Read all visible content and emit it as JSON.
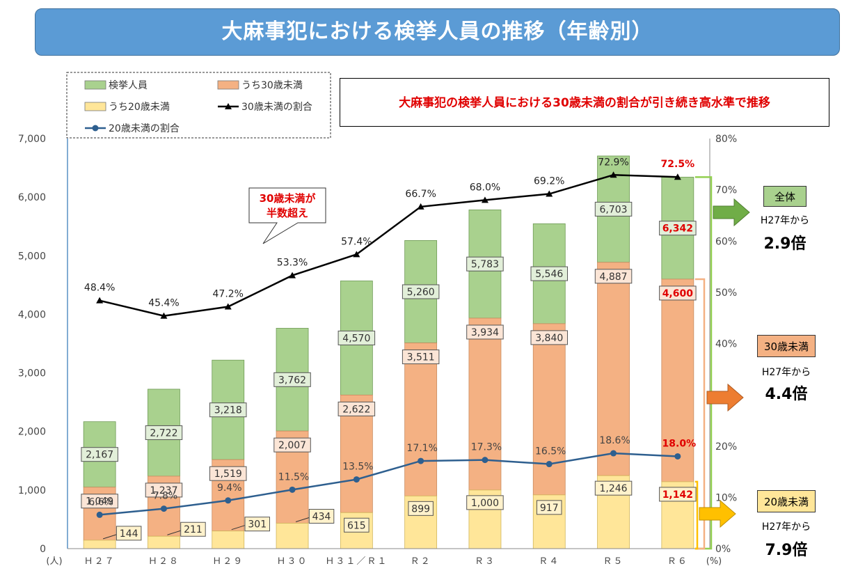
{
  "title": "大麻事犯における検挙人員の推移（年齢別）",
  "callout": "大麻事犯の検挙人員における30歳未満の割合が引き続き高水準で推移",
  "speech_bubble": [
    "30歳未満が",
    "半数超え"
  ],
  "side_notes": [
    {
      "label": "全体",
      "sub": "H27年から",
      "big": "2.9倍",
      "color": "#a9d18e"
    },
    {
      "label": "30歳未満",
      "sub": "H27年から",
      "big": "4.4倍",
      "color": "#f4b183"
    },
    {
      "label": "20歳未満",
      "sub": "H27年から",
      "big": "7.9倍",
      "color": "#ffe699"
    }
  ],
  "chart_data": {
    "type": "bar",
    "categories": [
      "Ｈ２７",
      "Ｈ２８",
      "Ｈ２９",
      "Ｈ３０",
      "Ｈ３１／Ｒ１",
      "Ｒ２",
      "Ｒ３",
      "Ｒ４",
      "Ｒ５",
      "Ｒ６"
    ],
    "y_unit_label": "(人)",
    "y2_unit_label": "(%)",
    "ylim": [
      0,
      7000
    ],
    "y_ticks": [
      "0",
      "1,000",
      "2,000",
      "3,000",
      "4,000",
      "5,000",
      "6,000",
      "7,000"
    ],
    "y2lim": [
      0,
      80
    ],
    "y2_ticks": [
      "0%",
      "10%",
      "20%",
      "30%",
      "40%",
      "50%",
      "60%",
      "70%",
      "80%"
    ],
    "legend_position": "top-left",
    "series": [
      {
        "name": "検挙人員",
        "kind": "bar",
        "color": "#a9d18e",
        "values": [
          2167,
          2722,
          3218,
          3762,
          4570,
          5260,
          5783,
          5546,
          6703,
          6342
        ],
        "labels": [
          "2,167",
          "2,722",
          "3,218",
          "3,762",
          "4,570",
          "5,260",
          "5,783",
          "5,546",
          "6,703",
          "6,342"
        ]
      },
      {
        "name": "うち30歳未満",
        "kind": "bar",
        "color": "#f4b183",
        "values": [
          1049,
          1237,
          1519,
          2007,
          2622,
          3511,
          3934,
          3840,
          4887,
          4600
        ],
        "labels": [
          "1,049",
          "1,237",
          "1,519",
          "2,007",
          "2,622",
          "3,511",
          "3,934",
          "3,840",
          "4,887",
          "4,600"
        ]
      },
      {
        "name": "うち20歳未満",
        "kind": "bar",
        "color": "#ffe699",
        "values": [
          144,
          211,
          301,
          434,
          615,
          899,
          1000,
          917,
          1246,
          1142
        ],
        "labels": [
          "144",
          "211",
          "301",
          "434",
          "615",
          "899",
          "1,000",
          "917",
          "1,246",
          "1,142"
        ]
      },
      {
        "name": "30歳未満の割合",
        "kind": "line",
        "color": "#000000",
        "marker": "triangle",
        "values": [
          48.4,
          45.4,
          47.2,
          53.3,
          57.4,
          66.7,
          68.0,
          69.2,
          72.9,
          72.5
        ],
        "labels": [
          "48.4%",
          "45.4%",
          "47.2%",
          "53.3%",
          "57.4%",
          "66.7%",
          "68.0%",
          "69.2%",
          "72.9%",
          "72.5%"
        ]
      },
      {
        "name": "20歳未満の割合",
        "kind": "line",
        "color": "#2e5f8f",
        "marker": "circle",
        "values": [
          6.6,
          7.8,
          9.4,
          11.5,
          13.5,
          17.1,
          17.3,
          16.5,
          18.6,
          18.0
        ],
        "labels": [
          "6.6%",
          "7.8%",
          "9.4%",
          "11.5%",
          "13.5%",
          "17.1%",
          "17.3%",
          "16.5%",
          "18.6%",
          "18.0%"
        ]
      }
    ],
    "highlight_color": "#e00000"
  }
}
